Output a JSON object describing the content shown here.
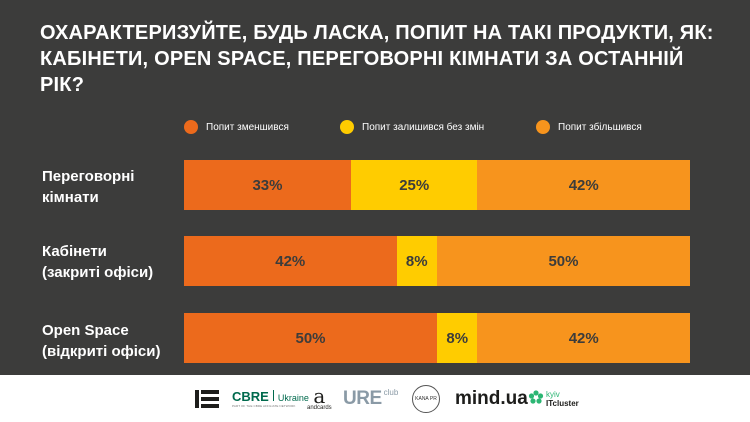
{
  "title": "ОХАРАКТЕРИЗУЙТЕ, БУДЬ ЛАСКА, ПОПИТ НА ТАКІ ПРОДУКТИ, ЯК: КАБІНЕТИ, OPEN SPACE, ПЕРЕГОВОРНІ КІМНАТИ ЗА ОСТАННІЙ РІК?",
  "colors": {
    "background": "#3c3c3b",
    "decreased": "#ec6a1c",
    "unchanged": "#ffcc00",
    "increased": "#f7941d"
  },
  "chart_data": {
    "type": "bar",
    "orientation": "horizontal",
    "stacked": true,
    "normalized": true,
    "title": "ОХАРАКТЕРИЗУЙТЕ, БУДЬ ЛАСКА, ПОПИТ НА ТАКІ ПРОДУКТИ, ЯК: КАБІНЕТИ, OPEN SPACE, ПЕРЕГОВОРНІ КІМНАТИ ЗА ОСТАННІЙ РІК?",
    "legend_placement": "top",
    "grid": false,
    "categories": [
      [
        "Переговорні",
        "кімнати"
      ],
      [
        "Кабінети",
        "(закриті офіси)"
      ],
      [
        "Open Space",
        "(відкриті офіси)"
      ]
    ],
    "series": [
      {
        "name": "Попит зменшився",
        "color": "#ec6a1c",
        "values": [
          33,
          42,
          50
        ],
        "labels": [
          "33%",
          "42%",
          "50%"
        ]
      },
      {
        "name": "Попит залишився без змін",
        "color": "#ffcc00",
        "values": [
          25,
          8,
          8
        ],
        "labels": [
          "25%",
          "8%",
          "8%"
        ]
      },
      {
        "name": "Попит збільшився",
        "color": "#f7941d",
        "values": [
          42,
          50,
          42
        ],
        "labels": [
          "42%",
          "50%",
          "42%"
        ]
      }
    ]
  },
  "footer": {
    "logos": {
      "cbre": "CBRE",
      "cbre_sub": "Ukraine",
      "cbre_tag": "PART OF THE CBRE AFFILIATE NETWORK",
      "andcards": "andcards",
      "ure": "URE",
      "ure_club": "club",
      "kanapr": "KANA PR",
      "mind": "mind.ua",
      "kyiv": "kyiv",
      "itcluster": "ITcluster"
    }
  }
}
